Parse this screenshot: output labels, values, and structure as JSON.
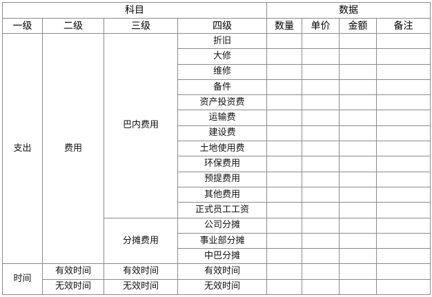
{
  "header": {
    "group_subject": "科目",
    "group_data": "数据",
    "columns": [
      "一级",
      "二级",
      "三级",
      "四级",
      "数量",
      "单价",
      "金额",
      "备注"
    ]
  },
  "body": {
    "level1_expense": "支出",
    "level2_expense": "费用",
    "level3_groups": [
      {
        "label": "巴内费用",
        "items": [
          "折旧",
          "大修",
          "维修",
          "备件",
          "资产投资费",
          "运输费",
          "建设费",
          "土地使用费",
          "环保费用",
          "预提费用",
          "其他费用",
          "正式员工工资"
        ]
      },
      {
        "label": "分摊费用",
        "items": [
          "公司分摊",
          "事业部分摊",
          "中巴分摊"
        ]
      }
    ],
    "level1_time": "时间",
    "time_rows": [
      {
        "level2": "有效时间",
        "level3": "有效时间",
        "level4": "有效时间"
      },
      {
        "level2": "无效时间",
        "level3": "无效时间",
        "level4": "无效时间"
      }
    ]
  }
}
